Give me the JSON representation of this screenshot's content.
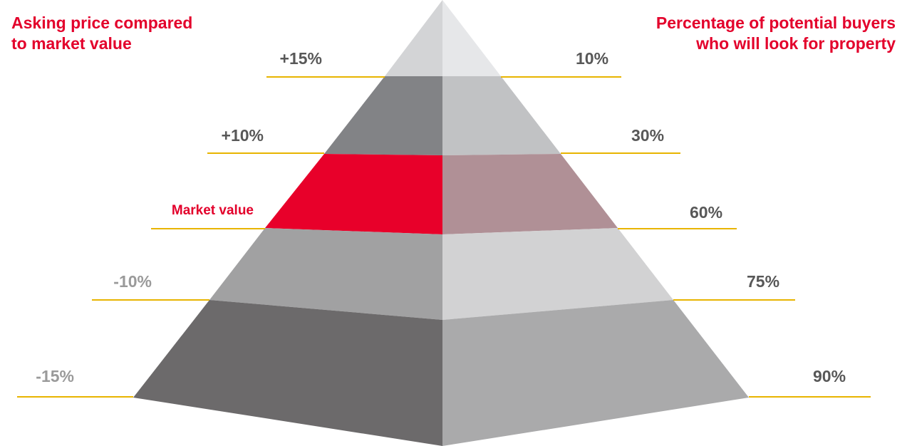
{
  "headings": {
    "left": [
      "Asking price compared",
      "to market value"
    ],
    "right": [
      "Percentage of potential buyers",
      "who will look for property"
    ]
  },
  "colors": {
    "heading": "#e3002b",
    "guide_line": "#e8b400",
    "label_dark": "#585858",
    "label_light": "#9a9a9a",
    "highlight": "#e3002b"
  },
  "tiers": [
    {
      "asking_price": "+15%",
      "buyers": "10%",
      "left_color": "#d3d4d6",
      "right_color": "#e6e7e9",
      "highlight": false,
      "left_label_color": "#585858",
      "right_label_color": "#585858"
    },
    {
      "asking_price": "+10%",
      "buyers": "30%",
      "left_color": "#828386",
      "right_color": "#c1c2c4",
      "highlight": false,
      "left_label_color": "#585858",
      "right_label_color": "#585858"
    },
    {
      "asking_price": "Market value",
      "buyers": "60%",
      "left_color": "#e8002a",
      "right_color": "#b09096",
      "highlight": true,
      "left_label_color": "#e3002b",
      "right_label_color": "#585858"
    },
    {
      "asking_price": "-10%",
      "buyers": "75%",
      "left_color": "#a1a1a2",
      "right_color": "#d2d2d3",
      "highlight": false,
      "left_label_color": "#9a9a9a",
      "right_label_color": "#585858"
    },
    {
      "asking_price": "-15%",
      "buyers": "90%",
      "left_color": "#6c6a6b",
      "right_color": "#aaaaab",
      "highlight": false,
      "left_label_color": "#9a9a9a",
      "right_label_color": "#585858"
    }
  ]
}
